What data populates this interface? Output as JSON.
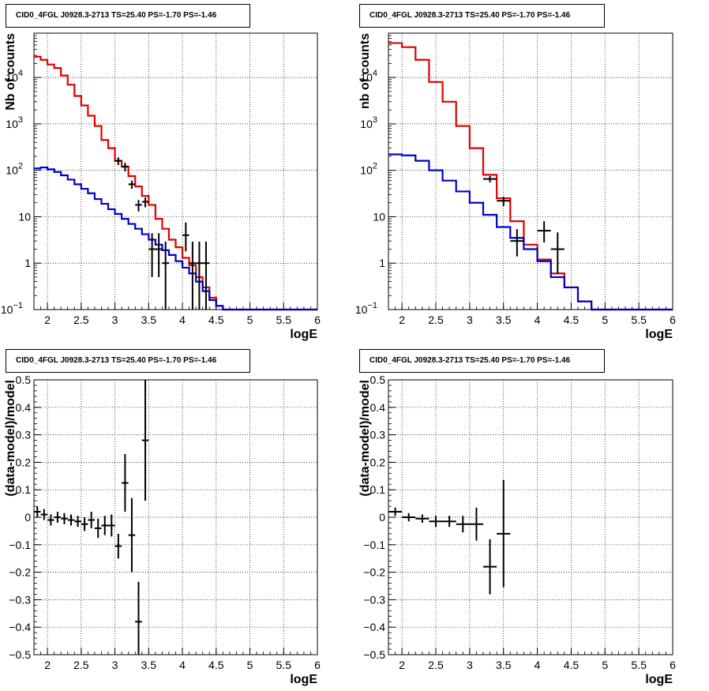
{
  "colors": {
    "data": "#000000",
    "total_model": "#e00000",
    "component_model": "#0000cc",
    "grid": "#000000"
  },
  "chart_data": [
    {
      "type": "line",
      "title": "CID0_4FGL J0928.3-2713 TS=25.40 PS=-1.70 PS=-1.46",
      "xlabel": "logE",
      "ylabel": "Nb of counts",
      "xlim": [
        1.8,
        6.0
      ],
      "ylim": [
        0.1,
        90000
      ],
      "yscale": "log",
      "grid": true,
      "x_ticks": [
        "2",
        "2.5",
        "3",
        "3.5",
        "4",
        "4.5",
        "5",
        "5.5",
        "6"
      ],
      "y_ticks": [
        "10^-1",
        "1",
        "10",
        "10^2",
        "10^3",
        "10^4"
      ],
      "series": [
        {
          "role": "total_model",
          "style": "step",
          "bin_edges": [
            1.8,
            1.9,
            2.0,
            2.1,
            2.2,
            2.3,
            2.4,
            2.5,
            2.6,
            2.7,
            2.8,
            2.9,
            3.0,
            3.1,
            3.2,
            3.3,
            3.4,
            3.5,
            3.6,
            3.7,
            3.8,
            3.9,
            4.0,
            4.1,
            4.2,
            4.3,
            4.4,
            4.5,
            4.6,
            6.0
          ],
          "values": [
            28000,
            24000,
            19000,
            16000,
            11000,
            7000,
            4000,
            2500,
            1500,
            900,
            450,
            300,
            160,
            120,
            75,
            45,
            28,
            18,
            9,
            5.5,
            3.2,
            2.2,
            1.3,
            0.9,
            0.5,
            0.3,
            0.18,
            0.12,
            0.1
          ]
        },
        {
          "role": "component_model",
          "style": "step",
          "bin_edges": [
            1.8,
            1.9,
            2.0,
            2.1,
            2.2,
            2.3,
            2.4,
            2.5,
            2.6,
            2.7,
            2.8,
            2.9,
            3.0,
            3.1,
            3.2,
            3.3,
            3.4,
            3.5,
            3.6,
            3.7,
            3.8,
            3.9,
            4.0,
            4.1,
            4.2,
            4.3,
            4.4,
            4.5,
            4.6,
            6.0
          ],
          "values": [
            110,
            115,
            105,
            92,
            78,
            63,
            50,
            40,
            32,
            24,
            19,
            14.5,
            11.5,
            9,
            7,
            5.5,
            4.2,
            3.2,
            2.5,
            1.9,
            1.5,
            1.1,
            0.8,
            0.6,
            0.4,
            0.25,
            0.16,
            0.12,
            0.1
          ]
        },
        {
          "role": "data",
          "style": "points",
          "x": [
            3.05,
            3.15,
            3.25,
            3.35,
            3.45,
            3.55,
            3.65,
            3.75,
            4.05,
            4.15,
            4.25,
            4.35
          ],
          "y": [
            160,
            120,
            50,
            18,
            21,
            2,
            2,
            1,
            4,
            1,
            1,
            1
          ],
          "yerr_lo": [
            30,
            25,
            10,
            5,
            5,
            1.5,
            1.5,
            0.9,
            2.2,
            0.9,
            0.9,
            0.9
          ],
          "yerr_hi": [
            30,
            25,
            10,
            5,
            5,
            2.4,
            2.4,
            1.9,
            3.5,
            1.9,
            1.9,
            1.9
          ]
        }
      ]
    },
    {
      "type": "line",
      "title": "CID0_4FGL J0928.3-2713 TS=25.40 PS=-1.70 PS=-1.46",
      "xlabel": "logE",
      "ylabel": "nb of counts",
      "xlim": [
        1.8,
        6.0
      ],
      "ylim": [
        0.1,
        90000
      ],
      "yscale": "log",
      "grid": true,
      "x_ticks": [
        "2",
        "2.5",
        "3",
        "3.5",
        "4",
        "4.5",
        "5",
        "5.5",
        "6"
      ],
      "y_ticks": [
        "10^-1",
        "1",
        "10",
        "10^2",
        "10^3",
        "10^4"
      ],
      "series": [
        {
          "role": "total_model",
          "style": "step",
          "bin_edges": [
            1.8,
            2.0,
            2.2,
            2.4,
            2.6,
            2.8,
            3.0,
            3.2,
            3.4,
            3.6,
            3.8,
            4.0,
            4.2,
            4.4,
            4.6,
            4.8,
            6.0
          ],
          "values": [
            55000,
            45000,
            24000,
            8000,
            3000,
            900,
            300,
            80,
            25,
            8,
            2.5,
            1.2,
            0.6,
            0.3,
            0.15,
            0.1
          ]
        },
        {
          "role": "component_model",
          "style": "step",
          "bin_edges": [
            1.8,
            2.0,
            2.2,
            2.4,
            2.6,
            2.8,
            3.0,
            3.2,
            3.4,
            3.6,
            3.8,
            4.0,
            4.2,
            4.4,
            4.6,
            4.8,
            6.0
          ],
          "values": [
            220,
            210,
            160,
            100,
            60,
            35,
            20,
            11,
            6,
            3.5,
            2,
            1.1,
            0.5,
            0.3,
            0.15,
            0.1
          ]
        },
        {
          "role": "data",
          "style": "points",
          "x": [
            3.3,
            3.5,
            3.7,
            4.1,
            4.3
          ],
          "y": [
            65,
            22,
            3,
            5,
            2
          ],
          "xerr": [
            0.1,
            0.1,
            0.1,
            0.1,
            0.1
          ],
          "yerr_lo": [
            10,
            5,
            1.6,
            2.2,
            1.4
          ],
          "yerr_hi": [
            10,
            5,
            2.4,
            3,
            2.6
          ]
        }
      ]
    },
    {
      "type": "scatter",
      "title": "CID0_4FGL J0928.3-2713 TS=25.40 PS=-1.70 PS=-1.46",
      "xlabel": "logE",
      "ylabel": "(data-model)/model",
      "xlim": [
        1.8,
        6.0
      ],
      "ylim": [
        -0.5,
        0.5
      ],
      "grid": true,
      "x_ticks": [
        "2",
        "2.5",
        "3",
        "3.5",
        "4",
        "4.5",
        "5",
        "5.5",
        "6"
      ],
      "y_ticks": [
        "-0.5",
        "-0.4",
        "-0.3",
        "-0.2",
        "-0.1",
        "0",
        "0.1",
        "0.2",
        "0.3",
        "0.4",
        "0.5"
      ],
      "series": [
        {
          "role": "data",
          "x": [
            1.85,
            1.95,
            2.05,
            2.15,
            2.25,
            2.35,
            2.45,
            2.55,
            2.65,
            2.75,
            2.85,
            2.95,
            3.05,
            3.15,
            3.25,
            3.35,
            3.45
          ],
          "y": [
            0.02,
            0.01,
            -0.01,
            0.0,
            -0.005,
            -0.01,
            -0.015,
            -0.025,
            -0.01,
            -0.04,
            -0.03,
            -0.03,
            -0.105,
            0.125,
            -0.065,
            -0.38,
            0.28
          ],
          "xerr": [
            0.05,
            0.05,
            0.05,
            0.05,
            0.05,
            0.05,
            0.05,
            0.05,
            0.05,
            0.05,
            0.05,
            0.05,
            0.05,
            0.05,
            0.05,
            0.05,
            0.05
          ],
          "yerr": [
            0.02,
            0.02,
            0.02,
            0.02,
            0.02,
            0.02,
            0.02,
            0.025,
            0.03,
            0.035,
            0.035,
            0.04,
            0.045,
            0.105,
            0.135,
            0.145,
            0.22
          ]
        }
      ]
    },
    {
      "type": "scatter",
      "title": "CID0_4FGL J0928.3-2713 TS=25.40 PS=-1.70 PS=-1.46",
      "xlabel": "logE",
      "ylabel": "(data-model)/model",
      "xlim": [
        1.8,
        6.0
      ],
      "ylim": [
        -0.5,
        0.5
      ],
      "grid": true,
      "x_ticks": [
        "2",
        "2.5",
        "3",
        "3.5",
        "4",
        "4.5",
        "5",
        "5.5",
        "6"
      ],
      "y_ticks": [
        "-0.5",
        "-0.4",
        "-0.3",
        "-0.2",
        "-0.1",
        "0",
        "0.1",
        "0.2",
        "0.3",
        "0.4",
        "0.5"
      ],
      "series": [
        {
          "role": "data",
          "x": [
            1.9,
            2.1,
            2.3,
            2.5,
            2.7,
            2.9,
            3.1,
            3.3,
            3.5
          ],
          "y": [
            0.02,
            0.0,
            -0.005,
            -0.015,
            -0.015,
            -0.025,
            -0.025,
            -0.18,
            -0.06
          ],
          "xerr": [
            0.1,
            0.1,
            0.1,
            0.1,
            0.1,
            0.1,
            0.1,
            0.1,
            0.1
          ],
          "yerr": [
            0.015,
            0.015,
            0.015,
            0.02,
            0.02,
            0.03,
            0.06,
            0.1,
            0.195
          ]
        }
      ]
    }
  ]
}
